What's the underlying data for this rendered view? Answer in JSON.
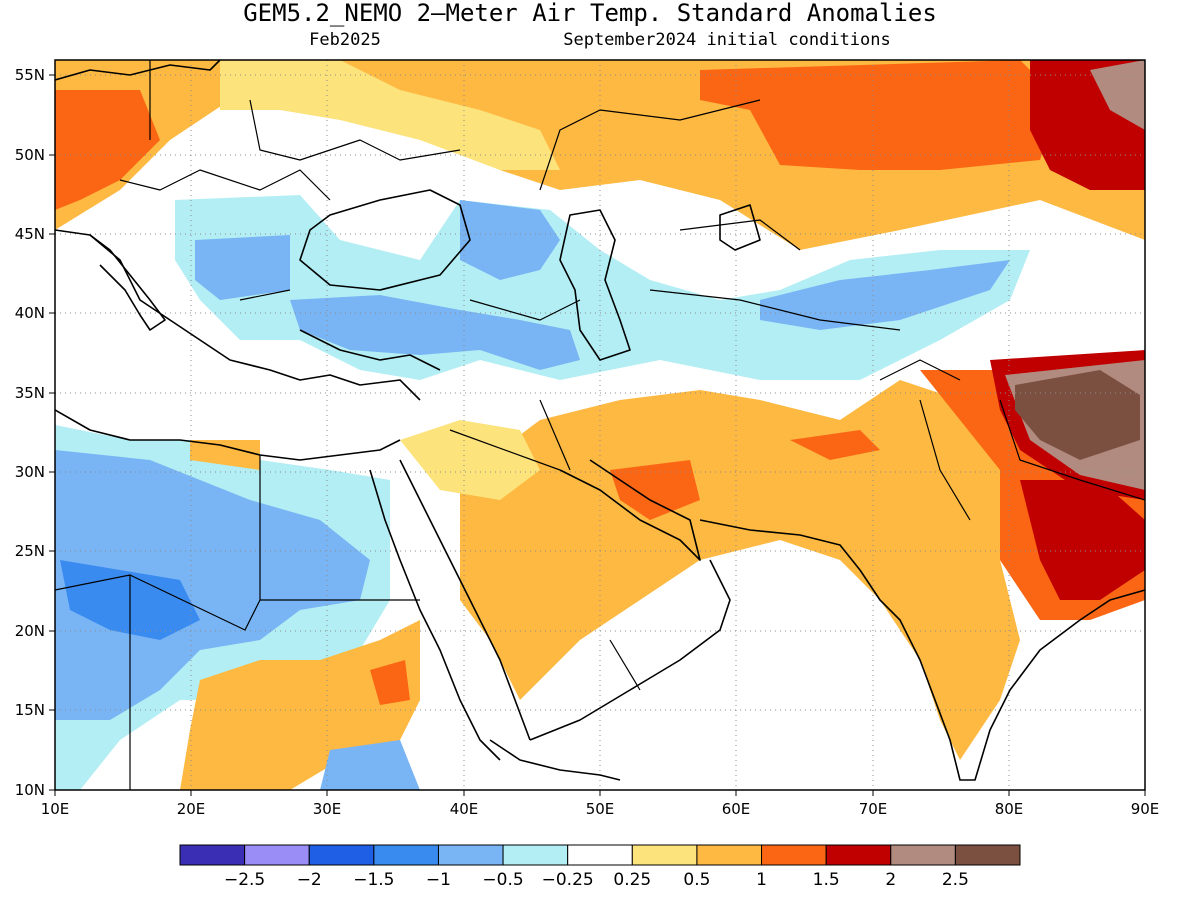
{
  "title": "GEM5.2_NEMO 2–Meter Air Temp. Standard Anomalies",
  "subtitle_left": "Feb2025",
  "subtitle_right": "September2024 initial conditions",
  "map": {
    "lon_range": [
      10,
      90
    ],
    "lat_range": [
      10,
      56
    ],
    "gridlines": true,
    "lon_ticks": [
      "10E",
      "20E",
      "30E",
      "40E",
      "50E",
      "60E",
      "70E",
      "80E",
      "90E"
    ],
    "lat_ticks": [
      "55N",
      "50N",
      "45N",
      "40N",
      "35N",
      "30N",
      "25N",
      "20N",
      "15N",
      "10N"
    ]
  },
  "legend": {
    "colors": [
      "#3a2fb4",
      "#9b8df6",
      "#1f5fe6",
      "#3a8bf0",
      "#79b4f4",
      "#b2eef4",
      "#ffffff",
      "#fde37c",
      "#fdb941",
      "#fb6614",
      "#c00000",
      "#b28b80",
      "#7b5040"
    ],
    "labels": [
      "−2.5",
      "−2",
      "−1.5",
      "−1",
      "−0.5",
      "−0.25",
      "0.25",
      "0.5",
      "1",
      "1.5",
      "2",
      "2.5"
    ]
  },
  "colors": {
    "neg_strong": "#3a8bf0",
    "neg_mid": "#79b4f4",
    "neg_light": "#b2eef4",
    "pos_light": "#fde37c",
    "pos_mid": "#fdb941",
    "pos_strong": "#fb6614",
    "pos_vstrong": "#c00000",
    "pos_xstrong": "#b28b80",
    "pos_max": "#7b5040"
  }
}
